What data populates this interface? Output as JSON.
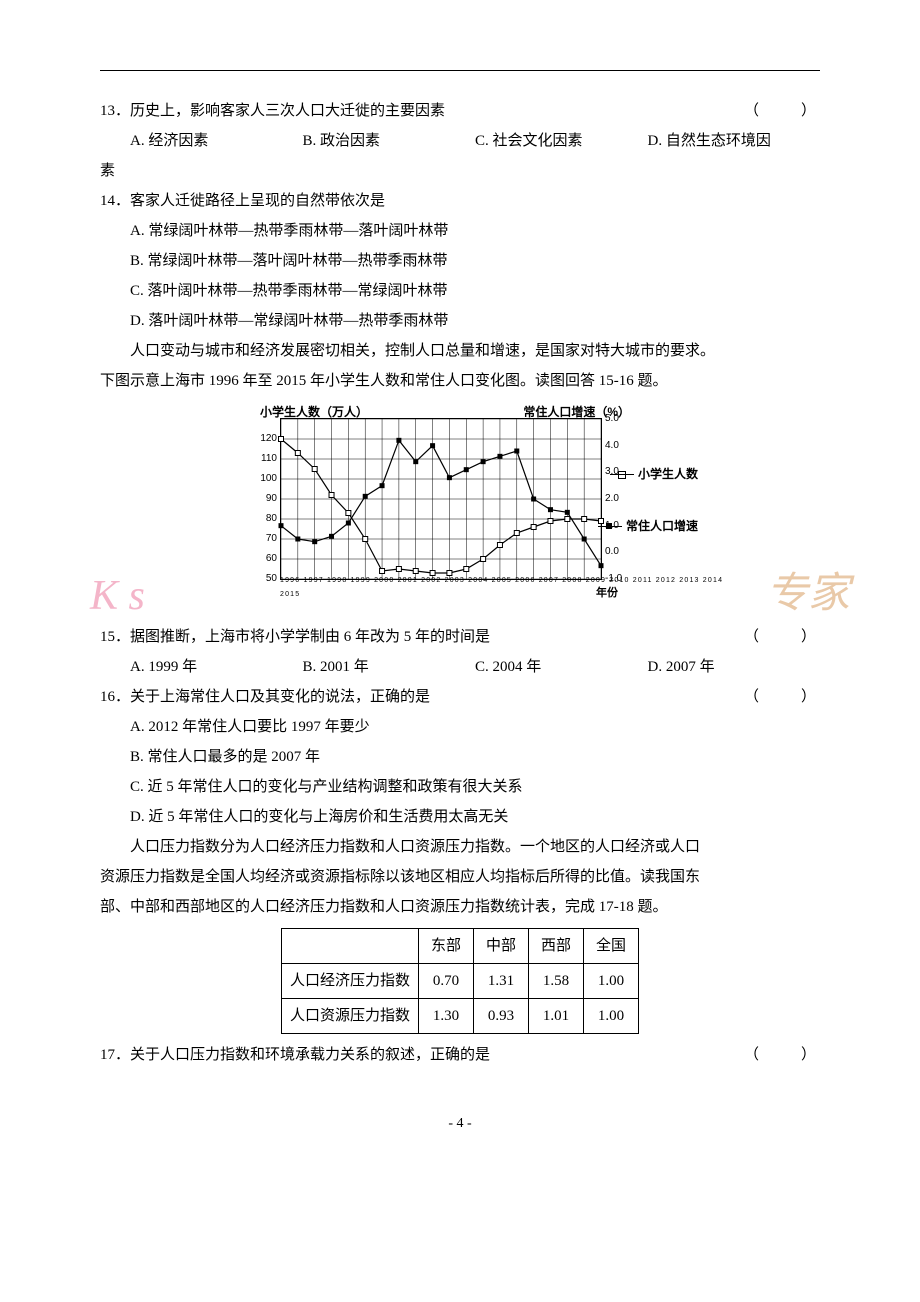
{
  "q13": {
    "text": "13．历史上，影响客家人三次人口大迁徙的主要因素",
    "paren": "（　　）",
    "opts": {
      "a": "A. 经济因素",
      "b": "B. 政治因素",
      "c": "C. 社会文化因素",
      "d": "D. 自然生态环境因"
    },
    "d_wrap": "素"
  },
  "q14": {
    "text": "14．客家人迁徙路径上呈现的自然带依次是",
    "opts": {
      "a": "A. 常绿阔叶林带—热带季雨林带—落叶阔叶林带",
      "b": "B. 常绿阔叶林带—落叶阔叶林带—热带季雨林带",
      "c": "C. 落叶阔叶林带—热带季雨林带—常绿阔叶林带",
      "d": "D. 落叶阔叶林带—常绿阔叶林带—热带季雨林带"
    }
  },
  "passage1": {
    "p1": "人口变动与城市和经济发展密切相关，控制人口总量和增速，是国家对特大城市的要求。",
    "p2": "下图示意上海市 1996 年至 2015 年小学生人数和常住人口变化图。读图回答 15-16 题。"
  },
  "chart": {
    "title_left": "小学生人数（万人）",
    "title_right": "常住人口增速（%）",
    "legend1": "小学生人数",
    "legend2": "常住人口增速",
    "x_unit": "年份",
    "x_ticks": "1996 1997 1998 1999 2000 2001 2002 2003 2004 2005 2006 2007 2008 2009 2010 2011 2012 2013 2014 2015",
    "y_left": {
      "min": 50,
      "max": 130,
      "step": 10,
      "labels": [
        "50",
        "60",
        "70",
        "80",
        "90",
        "100",
        "110",
        "120"
      ]
    },
    "y_right": {
      "min": -1.0,
      "max": 5.0,
      "step": 1.0,
      "labels": [
        "-1.0",
        "0.0",
        "1.0",
        "2.0",
        "3.0",
        "4.0",
        "5.0"
      ]
    },
    "students": [
      120,
      113,
      105,
      92,
      83,
      70,
      54,
      55,
      54,
      53,
      53,
      55,
      60,
      67,
      73,
      76,
      79,
      80,
      80,
      79
    ],
    "growth": [
      1.0,
      0.5,
      0.4,
      0.6,
      1.1,
      2.1,
      2.5,
      4.2,
      3.4,
      4.0,
      2.8,
      3.1,
      3.4,
      3.6,
      3.8,
      2.0,
      1.6,
      1.5,
      0.5,
      -0.5
    ],
    "colors": {
      "line": "#000000",
      "grid": "#000000",
      "bg": "#ffffff"
    }
  },
  "watermarks": {
    "left": "K s",
    "left_color": "#f4b5c9",
    "right": "专家",
    "right_color": "#e9c9a8"
  },
  "q15": {
    "text": "15．据图推断，上海市将小学学制由 6 年改为 5 年的时间是",
    "paren": "（　　）",
    "opts": {
      "a": "A. 1999 年",
      "b": "B. 2001 年",
      "c": "C. 2004 年",
      "d": "D. 2007 年"
    }
  },
  "q16": {
    "text": "16．关于上海常住人口及其变化的说法，正确的是",
    "paren": "（　　）",
    "opts": {
      "a": "A. 2012 年常住人口要比 1997 年要少",
      "b": "B. 常住人口最多的是 2007 年",
      "c": "C. 近 5 年常住人口的变化与产业结构调整和政策有很大关系",
      "d": "D. 近 5 年常住人口的变化与上海房价和生活费用太高无关"
    }
  },
  "passage2": {
    "p1": "人口压力指数分为人口经济压力指数和人口资源压力指数。一个地区的人口经济或人口",
    "p2": "资源压力指数是全国人均经济或资源指标除以该地区相应人均指标后所得的比值。读我国东",
    "p3": "部、中部和西部地区的人口经济压力指数和人口资源压力指数统计表，完成 17-18 题。"
  },
  "table": {
    "columns": [
      "",
      "东部",
      "中部",
      "西部",
      "全国"
    ],
    "rows": [
      [
        "人口经济压力指数",
        "0.70",
        "1.31",
        "1.58",
        "1.00"
      ],
      [
        "人口资源压力指数",
        "1.30",
        "0.93",
        "1.01",
        "1.00"
      ]
    ]
  },
  "q17": {
    "text": "17．关于人口压力指数和环境承载力关系的叙述，正确的是",
    "paren": "（　　）"
  },
  "page_num": "- 4 -"
}
